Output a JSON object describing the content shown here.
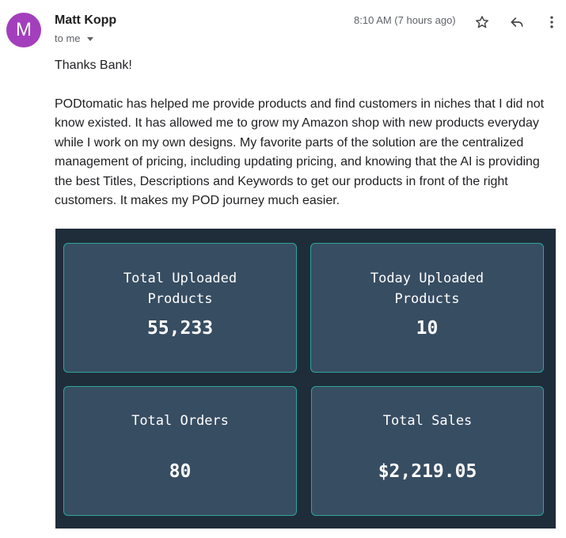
{
  "email": {
    "sender": {
      "name": "Matt Kopp",
      "avatar_letter": "M",
      "avatar_color": "#a33fbc"
    },
    "recipient": "to me",
    "timestamp": "8:10 AM (7 hours ago)",
    "actions": [
      {
        "icon": "star-icon",
        "label": "Star"
      },
      {
        "icon": "reply-icon",
        "label": "Reply"
      },
      {
        "icon": "more-vert-icon",
        "label": "More"
      }
    ],
    "greeting": "Thanks Bank!",
    "body": "PODtomatic has helped me provide products and find customers in niches that I did not know existed. It has allowed me to grow my Amazon shop with new products everyday while I work on my own designs. My favorite parts of the solution are the centralized management of pricing, including updating pricing, and knowing that the AI is providing the best Titles, Descriptions and Keywords to get our products in front of the right customers. It makes my POD journey much easier."
  },
  "dashboard": {
    "accent_color": "#2fa59a",
    "background_color": "#1f2d3a",
    "card_color": "#374d62",
    "cards": [
      {
        "label": "Total Uploaded\nProducts",
        "value": "55,233"
      },
      {
        "label": "Today Uploaded\nProducts",
        "value": "10"
      },
      {
        "label": "Total Orders",
        "value": "80"
      },
      {
        "label": "Total Sales",
        "value": "$2,219.05"
      }
    ]
  }
}
